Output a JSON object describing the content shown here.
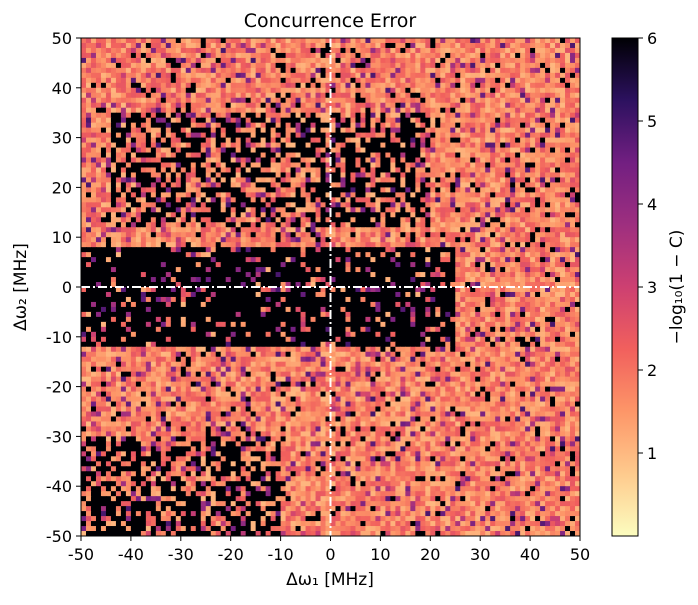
{
  "chart_data": {
    "type": "heatmap",
    "title": "Concurrence Error",
    "xlabel": "Δω₁ [MHz]",
    "ylabel": "Δω₂ [MHz]",
    "colorbar_label": "−log₁₀(1 − C)",
    "xlim": [
      -50,
      50
    ],
    "ylim": [
      -50,
      50
    ],
    "x_ticks": [
      "-50",
      "-40",
      "-30",
      "-20",
      "-10",
      "0",
      "10",
      "20",
      "30",
      "40",
      "50"
    ],
    "y_ticks": [
      "50",
      "40",
      "30",
      "20",
      "10",
      "0",
      "-10",
      "-20",
      "-30",
      "-40",
      "-50"
    ],
    "colorbar_range": [
      0,
      6
    ],
    "colorbar_ticks": [
      "1",
      "2",
      "3",
      "4",
      "5",
      "6"
    ],
    "colormap": "magma_r",
    "grid_resolution": 100,
    "overlay_lines": [
      {
        "orientation": "vertical",
        "x": 0,
        "style": "dash-dot",
        "color": "#ffffff"
      },
      {
        "orientation": "horizontal",
        "y": 0,
        "style": "dash-dot",
        "color": "#ffffff"
      }
    ],
    "regions_of_high_value": [
      {
        "label": "central band",
        "x_range": [
          -50,
          25
        ],
        "y_range": [
          -12,
          8
        ],
        "value": 6
      },
      {
        "label": "upper band",
        "x_range": [
          -45,
          20
        ],
        "y_range": [
          12,
          35
        ],
        "value": 5.5
      },
      {
        "label": "lower-left spots",
        "x_range": [
          -50,
          -10
        ],
        "y_range": [
          -50,
          -30
        ],
        "value": 5
      }
    ],
    "background_value_range": [
      1,
      2.5
    ]
  },
  "colors": {
    "low": "#fcfdbf",
    "mid": "#f7705c",
    "high": "#000004",
    "guide_lines": "#ffffff"
  }
}
